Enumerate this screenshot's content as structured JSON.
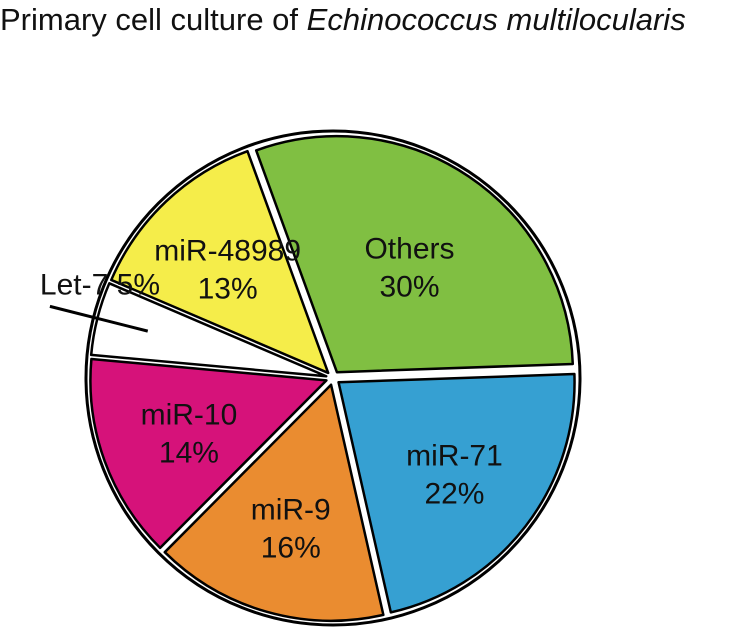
{
  "chart_data": {
    "type": "pie",
    "title": "Primary cell culture of",
    "title_italic": "Echinococcus multilocularis",
    "slices": [
      {
        "label": "Others",
        "value": 30,
        "value_label": "30%",
        "color": "#80bf42"
      },
      {
        "label": "miR-71",
        "value": 22,
        "value_label": "22%",
        "color": "#36a0d2"
      },
      {
        "label": "miR-9",
        "value": 16,
        "value_label": "16%",
        "color": "#ea8c30"
      },
      {
        "label": "miR-10",
        "value": 14,
        "value_label": "14%",
        "color": "#d6127a"
      },
      {
        "label": "Let-7",
        "value": 5,
        "value_label": "5%",
        "color": "#ffffff"
      },
      {
        "label": "miR-48989",
        "value": 13,
        "value_label": "13%",
        "color": "#f5ed4a"
      }
    ],
    "outline_color": "#000000"
  }
}
